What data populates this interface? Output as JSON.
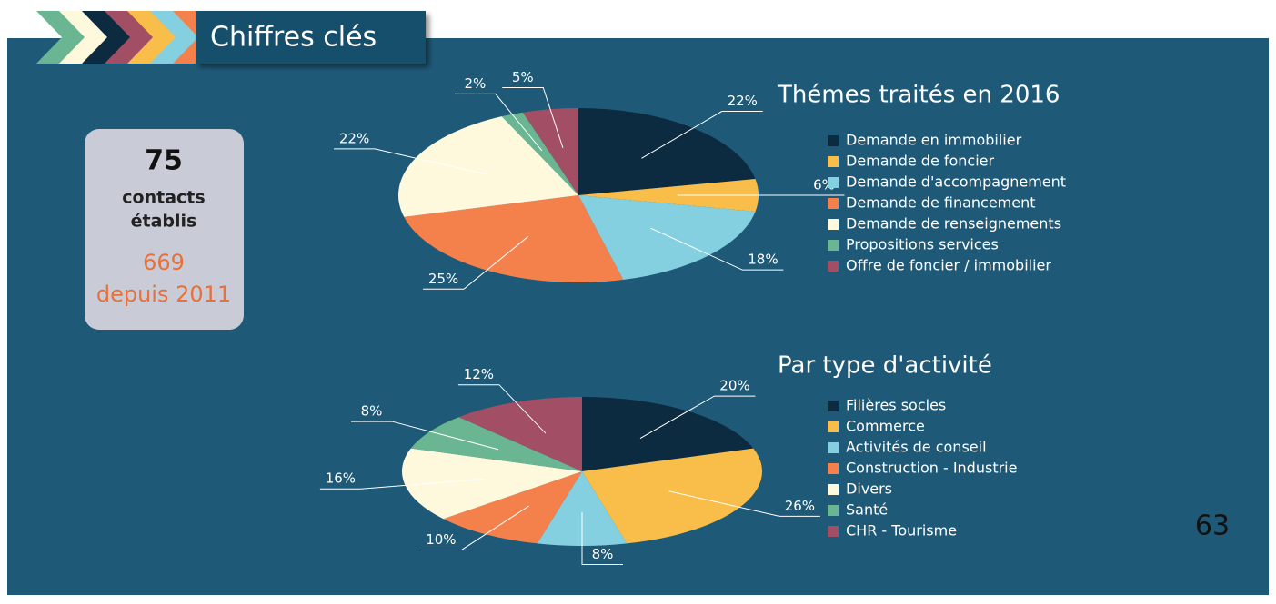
{
  "header": {
    "title": "Chiffres clés"
  },
  "stat": {
    "number": "75",
    "line1": "contacts",
    "line2": "établis",
    "total": "669",
    "since": "depuis 2011"
  },
  "page_number": "63",
  "chart_data": [
    {
      "type": "pie",
      "title": "Thémes traités en 2016",
      "categories": [
        "Demande en immobilier",
        "Demande de foncier",
        "Demande d'accompagnement",
        "Demande de financement",
        "Demande de renseignements",
        "Propositions services",
        "Offre de foncier / immobilier"
      ],
      "values": [
        22,
        6,
        18,
        25,
        22,
        2,
        5
      ],
      "value_labels": [
        "22%",
        "6%",
        "18%",
        "25%",
        "22%",
        "2%",
        "5%"
      ],
      "colors": [
        "#0d2b40",
        "#f9bd4a",
        "#84d0e0",
        "#f4814c",
        "#fef8dc",
        "#6ab592",
        "#a24e65"
      ]
    },
    {
      "type": "pie",
      "title": "Par type d'activité",
      "categories": [
        "Filières socles",
        "Commerce",
        "Activités de conseil",
        "Construction - Industrie",
        "Divers",
        "Santé",
        "CHR - Tourisme"
      ],
      "values": [
        20,
        26,
        8,
        10,
        16,
        8,
        12
      ],
      "value_labels": [
        "20%",
        "26%",
        "8%",
        "10%",
        "16%",
        "8%",
        "12%"
      ],
      "colors": [
        "#0d2b40",
        "#f9bd4a",
        "#84d0e0",
        "#f4814c",
        "#fef8dc",
        "#6ab592",
        "#a24e65"
      ]
    }
  ]
}
